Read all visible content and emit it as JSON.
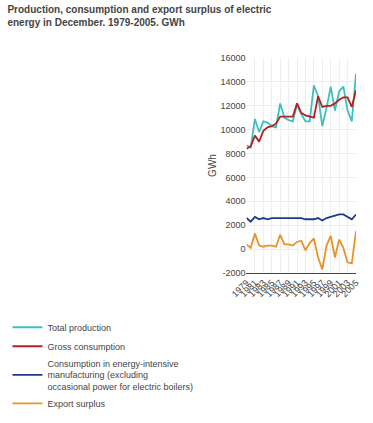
{
  "chart_data": {
    "type": "line",
    "title": "Production, consumption and export surplus of electric\nenergy in December. 1979-2005. GWh",
    "ylabel": "GWh",
    "x": [
      1979,
      1980,
      1981,
      1982,
      1983,
      1984,
      1985,
      1986,
      1987,
      1988,
      1989,
      1990,
      1991,
      1992,
      1993,
      1994,
      1995,
      1996,
      1997,
      1998,
      1999,
      2000,
      2001,
      2002,
      2003,
      2004,
      2005
    ],
    "series": [
      {
        "name": "Total production",
        "color": "#3DBFBF",
        "values": [
          8700,
          8500,
          10900,
          9800,
          10700,
          10600,
          10300,
          10200,
          12200,
          11000,
          10800,
          10700,
          12100,
          11300,
          10700,
          10700,
          13700,
          12800,
          10300,
          11800,
          13600,
          11600,
          13200,
          13600,
          11600,
          10700,
          14700
        ]
      },
      {
        "name": "Gross consumption",
        "color": "#B22222",
        "values": [
          8400,
          8600,
          9500,
          9000,
          9900,
          10200,
          10300,
          10500,
          11100,
          11100,
          11100,
          11100,
          12200,
          11400,
          11200,
          11100,
          11000,
          12800,
          11900,
          12000,
          12000,
          12200,
          12500,
          12700,
          12700,
          11900,
          13300
        ]
      },
      {
        "name": "Consumption in energy-intensive\nmanufacturing (excluding\noccasional power for electric boilers)",
        "color": "#1F3A8A",
        "values": [
          2600,
          2300,
          2700,
          2500,
          2600,
          2500,
          2600,
          2600,
          2600,
          2600,
          2600,
          2600,
          2600,
          2600,
          2500,
          2500,
          2500,
          2600,
          2400,
          2600,
          2700,
          2800,
          2900,
          2900,
          2700,
          2500,
          2900
        ]
      },
      {
        "name": "Export surplus",
        "color": "#E8922A",
        "values": [
          400,
          100,
          1300,
          300,
          200,
          300,
          300,
          200,
          1200,
          400,
          400,
          300,
          600,
          700,
          -100,
          500,
          900,
          -700,
          -1700,
          300,
          1100,
          -700,
          800,
          100,
          -1100,
          -1200,
          1500
        ]
      }
    ],
    "xlim": [
      1979,
      2005
    ],
    "xticks": [
      1979,
      1981,
      1983,
      1985,
      1987,
      1989,
      1991,
      1993,
      1995,
      1997,
      1999,
      2001,
      2003,
      2005
    ],
    "ylim": [
      -2000,
      16000
    ],
    "yticks": [
      -2000,
      0,
      2000,
      4000,
      6000,
      8000,
      10000,
      12000,
      14000,
      16000
    ],
    "grid": true,
    "legend": "bottom"
  }
}
